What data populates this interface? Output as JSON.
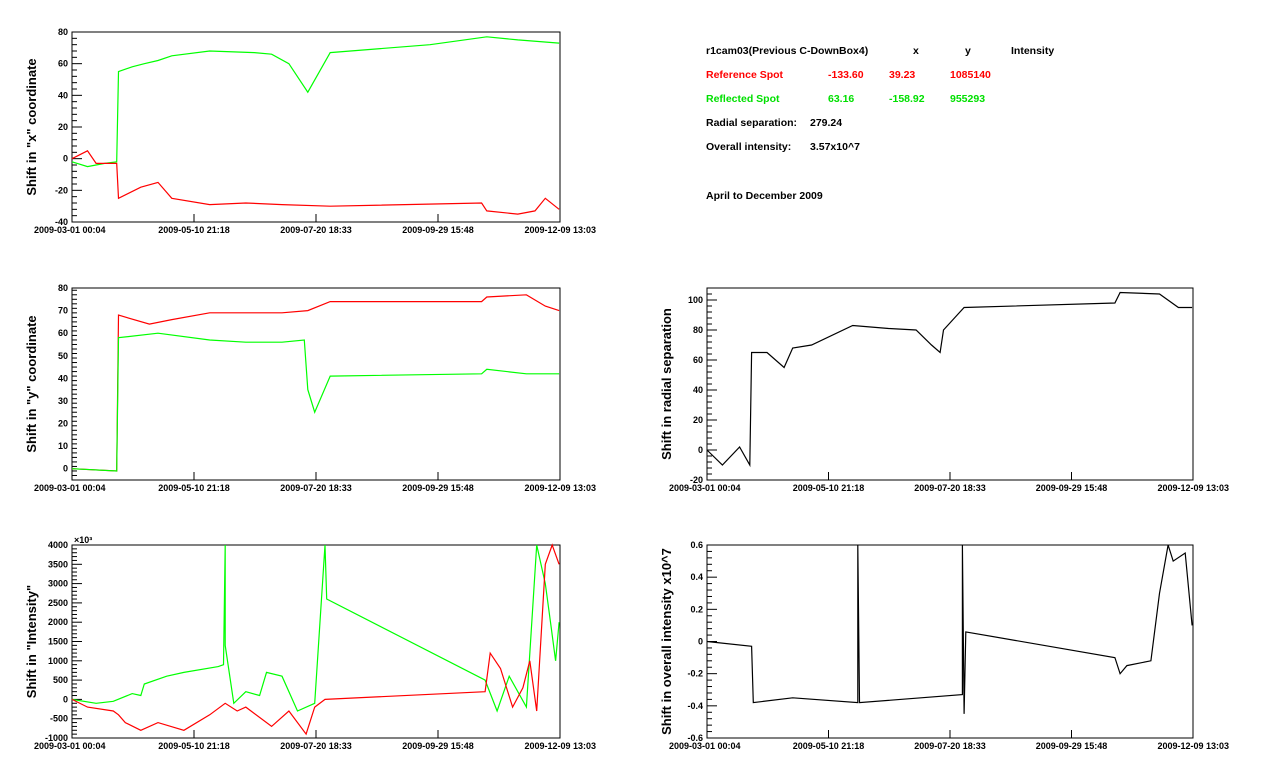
{
  "info": {
    "title": "r1cam03(Previous C-DownBox4)",
    "col_x": "x",
    "col_y": "y",
    "col_intensity": "Intensity",
    "reference": {
      "label": "Reference Spot",
      "x": "-133.60",
      "y": "39.23",
      "intensity": "1085140",
      "color": "#ff0000"
    },
    "reflected": {
      "label": "Reflected Spot",
      "x": "63.16",
      "y": "-158.92",
      "intensity": "955293",
      "color": "#00ff00"
    },
    "radial_label": "Radial separation:",
    "radial_value": "279.24",
    "overall_label": "Overall intensity:",
    "overall_value": "3.57x10^7",
    "period": "April to December 2009"
  },
  "chart_data": [
    {
      "type": "line",
      "ylabel": "Shift in \"x\" coordinate",
      "xlim": [
        "2009-03-01 00:04",
        "2009-12-09 13:03"
      ],
      "xticks": [
        "2009-03-01 00:04",
        "2009-05-10 21:18",
        "2009-07-20 18:33",
        "2009-09-29 15:48",
        "2009-12-09 13:03"
      ],
      "ylim": [
        -40,
        80
      ],
      "yticks": [
        -40,
        -20,
        0,
        20,
        40,
        60,
        80
      ],
      "ymultiplier": "",
      "series": [
        {
          "color": "#00ff00",
          "points": [
            [
              "2009-03-01",
              -2
            ],
            [
              "2009-03-10",
              -5
            ],
            [
              "2009-03-20",
              -3
            ],
            [
              "2009-03-27",
              -2
            ],
            [
              "2009-03-28",
              55
            ],
            [
              "2009-04-05",
              58
            ],
            [
              "2009-04-12",
              60
            ],
            [
              "2009-04-20",
              62
            ],
            [
              "2009-04-28",
              65
            ],
            [
              "2009-05-20",
              68
            ],
            [
              "2009-06-15",
              67
            ],
            [
              "2009-06-25",
              66
            ],
            [
              "2009-07-05",
              60
            ],
            [
              "2009-07-16",
              42
            ],
            [
              "2009-07-29",
              67
            ],
            [
              "2009-09-25",
              72
            ],
            [
              "2009-10-28",
              77
            ],
            [
              "2009-11-15",
              75
            ],
            [
              "2009-12-09",
              73
            ]
          ]
        },
        {
          "color": "#ff0000",
          "points": [
            [
              "2009-03-01",
              0
            ],
            [
              "2009-03-10",
              5
            ],
            [
              "2009-03-15",
              -3
            ],
            [
              "2009-03-27",
              -3
            ],
            [
              "2009-03-28",
              -25
            ],
            [
              "2009-04-10",
              -18
            ],
            [
              "2009-04-20",
              -15
            ],
            [
              "2009-04-28",
              -25
            ],
            [
              "2009-05-20",
              -29
            ],
            [
              "2009-06-10",
              -28
            ],
            [
              "2009-07-01",
              -29
            ],
            [
              "2009-07-29",
              -30
            ],
            [
              "2009-10-25",
              -28
            ],
            [
              "2009-10-28",
              -33
            ],
            [
              "2009-11-15",
              -35
            ],
            [
              "2009-11-25",
              -33
            ],
            [
              "2009-12-01",
              -25
            ],
            [
              "2009-12-09",
              -32
            ]
          ]
        }
      ]
    },
    {
      "type": "line",
      "ylabel": "Shift in \"y\" coordinate",
      "xlim": [
        "2009-03-01 00:04",
        "2009-12-09 13:03"
      ],
      "xticks": [
        "2009-03-01 00:04",
        "2009-05-10 21:18",
        "2009-07-20 18:33",
        "2009-09-29 15:48",
        "2009-12-09 13:03"
      ],
      "ylim": [
        -5,
        80
      ],
      "yticks": [
        0,
        10,
        20,
        30,
        40,
        50,
        60,
        70,
        80
      ],
      "ymultiplier": "",
      "series": [
        {
          "color": "#ff0000",
          "points": [
            [
              "2009-03-01",
              0
            ],
            [
              "2009-03-27",
              -1
            ],
            [
              "2009-03-28",
              68
            ],
            [
              "2009-04-15",
              64
            ],
            [
              "2009-04-28",
              66
            ],
            [
              "2009-05-20",
              69
            ],
            [
              "2009-07-01",
              69
            ],
            [
              "2009-07-16",
              70
            ],
            [
              "2009-07-29",
              74
            ],
            [
              "2009-10-25",
              74
            ],
            [
              "2009-10-28",
              76
            ],
            [
              "2009-11-20",
              77
            ],
            [
              "2009-12-01",
              72
            ],
            [
              "2009-12-09",
              70
            ]
          ]
        },
        {
          "color": "#00ff00",
          "points": [
            [
              "2009-03-01",
              0
            ],
            [
              "2009-03-27",
              -1
            ],
            [
              "2009-03-28",
              58
            ],
            [
              "2009-04-20",
              60
            ],
            [
              "2009-05-20",
              57
            ],
            [
              "2009-06-10",
              56
            ],
            [
              "2009-07-01",
              56
            ],
            [
              "2009-07-14",
              57
            ],
            [
              "2009-07-16",
              35
            ],
            [
              "2009-07-20",
              25
            ],
            [
              "2009-07-29",
              41
            ],
            [
              "2009-10-25",
              42
            ],
            [
              "2009-10-28",
              44
            ],
            [
              "2009-11-20",
              42
            ],
            [
              "2009-12-09",
              42
            ]
          ]
        }
      ]
    },
    {
      "type": "line",
      "ylabel": "Shift in \"Intensity\"",
      "xlim": [
        "2009-03-01 00:04",
        "2009-12-09 13:03"
      ],
      "xticks": [
        "2009-03-01 00:04",
        "2009-05-10 21:18",
        "2009-07-20 18:33",
        "2009-09-29 15:48",
        "2009-12-09 13:03"
      ],
      "ylim": [
        -1000,
        4000
      ],
      "yticks": [
        -1000,
        -500,
        0,
        500,
        1000,
        1500,
        2000,
        2500,
        3000,
        3500,
        4000
      ],
      "ymultiplier": "×10³",
      "series": [
        {
          "color": "#00ff00",
          "points": [
            [
              "2009-03-01",
              0
            ],
            [
              "2009-03-15",
              -100
            ],
            [
              "2009-03-25",
              -50
            ],
            [
              "2009-04-05",
              150
            ],
            [
              "2009-04-10",
              100
            ],
            [
              "2009-04-12",
              400
            ],
            [
              "2009-04-25",
              600
            ],
            [
              "2009-05-05",
              700
            ],
            [
              "2009-05-25",
              850
            ],
            [
              "2009-05-28",
              900
            ],
            [
              "2009-05-29",
              4000
            ],
            [
              "2009-05-29",
              1400
            ],
            [
              "2009-06-03",
              -100
            ],
            [
              "2009-06-10",
              200
            ],
            [
              "2009-06-18",
              100
            ],
            [
              "2009-06-22",
              700
            ],
            [
              "2009-07-01",
              600
            ],
            [
              "2009-07-10",
              -300
            ],
            [
              "2009-07-20",
              -100
            ],
            [
              "2009-07-26",
              4000
            ],
            [
              "2009-07-27",
              2600
            ],
            [
              "2009-10-27",
              500
            ],
            [
              "2009-11-03",
              -300
            ],
            [
              "2009-11-10",
              600
            ],
            [
              "2009-11-20",
              -200
            ],
            [
              "2009-11-26",
              4000
            ],
            [
              "2009-12-01",
              3000
            ],
            [
              "2009-12-04",
              2000
            ],
            [
              "2009-12-07",
              1000
            ],
            [
              "2009-12-09",
              2000
            ]
          ]
        },
        {
          "color": "#ff0000",
          "points": [
            [
              "2009-03-01",
              0
            ],
            [
              "2009-03-10",
              -200
            ],
            [
              "2009-03-25",
              -300
            ],
            [
              "2009-03-28",
              -400
            ],
            [
              "2009-04-01",
              -600
            ],
            [
              "2009-04-10",
              -800
            ],
            [
              "2009-04-20",
              -600
            ],
            [
              "2009-05-05",
              -800
            ],
            [
              "2009-05-20",
              -400
            ],
            [
              "2009-05-29",
              -100
            ],
            [
              "2009-06-05",
              -300
            ],
            [
              "2009-06-10",
              -200
            ],
            [
              "2009-06-25",
              -700
            ],
            [
              "2009-07-05",
              -300
            ],
            [
              "2009-07-15",
              -900
            ],
            [
              "2009-07-20",
              -200
            ],
            [
              "2009-07-26",
              0
            ],
            [
              "2009-10-27",
              200
            ],
            [
              "2009-10-30",
              1200
            ],
            [
              "2009-11-05",
              800
            ],
            [
              "2009-11-12",
              -200
            ],
            [
              "2009-11-18",
              300
            ],
            [
              "2009-11-22",
              1000
            ],
            [
              "2009-11-26",
              -300
            ],
            [
              "2009-12-01",
              3500
            ],
            [
              "2009-12-05",
              4000
            ],
            [
              "2009-12-09",
              3500
            ]
          ]
        }
      ]
    },
    {
      "type": "line",
      "ylabel": "Shift in radial separation",
      "xlim": [
        "2009-03-01 00:04",
        "2009-12-09 13:03"
      ],
      "xticks": [
        "2009-03-01 00:04",
        "2009-05-10 21:18",
        "2009-07-20 18:33",
        "2009-09-29 15:48",
        "2009-12-09 13:03"
      ],
      "ylim": [
        -20,
        108
      ],
      "yticks": [
        -20,
        0,
        20,
        40,
        60,
        80,
        100
      ],
      "ymultiplier": "",
      "series": [
        {
          "color": "#000000",
          "points": [
            [
              "2009-03-01",
              0
            ],
            [
              "2009-03-10",
              -10
            ],
            [
              "2009-03-20",
              2
            ],
            [
              "2009-03-26",
              -10
            ],
            [
              "2009-03-27",
              65
            ],
            [
              "2009-04-05",
              65
            ],
            [
              "2009-04-15",
              55
            ],
            [
              "2009-04-20",
              68
            ],
            [
              "2009-05-01",
              70
            ],
            [
              "2009-05-25",
              83
            ],
            [
              "2009-06-15",
              81
            ],
            [
              "2009-07-01",
              80
            ],
            [
              "2009-07-10",
              70
            ],
            [
              "2009-07-15",
              65
            ],
            [
              "2009-07-17",
              80
            ],
            [
              "2009-07-25",
              90
            ],
            [
              "2009-07-29",
              95
            ],
            [
              "2009-10-25",
              98
            ],
            [
              "2009-10-28",
              105
            ],
            [
              "2009-11-20",
              104
            ],
            [
              "2009-12-01",
              95
            ],
            [
              "2009-12-09",
              95
            ]
          ]
        }
      ]
    },
    {
      "type": "line",
      "ylabel": "Shift in overall intensity x10^7",
      "xlim": [
        "2009-03-01 00:04",
        "2009-12-09 13:03"
      ],
      "xticks": [
        "2009-03-01 00:04",
        "2009-05-10 21:18",
        "2009-07-20 18:33",
        "2009-09-29 15:48",
        "2009-12-09 13:03"
      ],
      "ylim": [
        -0.6,
        0.6
      ],
      "yticks": [
        -0.6,
        -0.4,
        -0.2,
        0,
        0.2,
        0.4,
        0.6
      ],
      "ymultiplier": "",
      "series": [
        {
          "color": "#000000",
          "points": [
            [
              "2009-03-01",
              0
            ],
            [
              "2009-03-27",
              -0.03
            ],
            [
              "2009-03-28",
              -0.38
            ],
            [
              "2009-04-20",
              -0.35
            ],
            [
              "2009-05-28",
              -0.38
            ],
            [
              "2009-05-28",
              0.6
            ],
            [
              "2009-05-29",
              -0.38
            ],
            [
              "2009-07-28",
              -0.33
            ],
            [
              "2009-07-28",
              0.6
            ],
            [
              "2009-07-29",
              -0.45
            ],
            [
              "2009-07-30",
              0.06
            ],
            [
              "2009-10-25",
              -0.1
            ],
            [
              "2009-10-28",
              -0.2
            ],
            [
              "2009-11-01",
              -0.15
            ],
            [
              "2009-11-15",
              -0.12
            ],
            [
              "2009-11-20",
              0.3
            ],
            [
              "2009-11-25",
              0.6
            ],
            [
              "2009-11-28",
              0.5
            ],
            [
              "2009-12-05",
              0.55
            ],
            [
              "2009-12-09",
              0.1
            ]
          ]
        }
      ]
    }
  ]
}
